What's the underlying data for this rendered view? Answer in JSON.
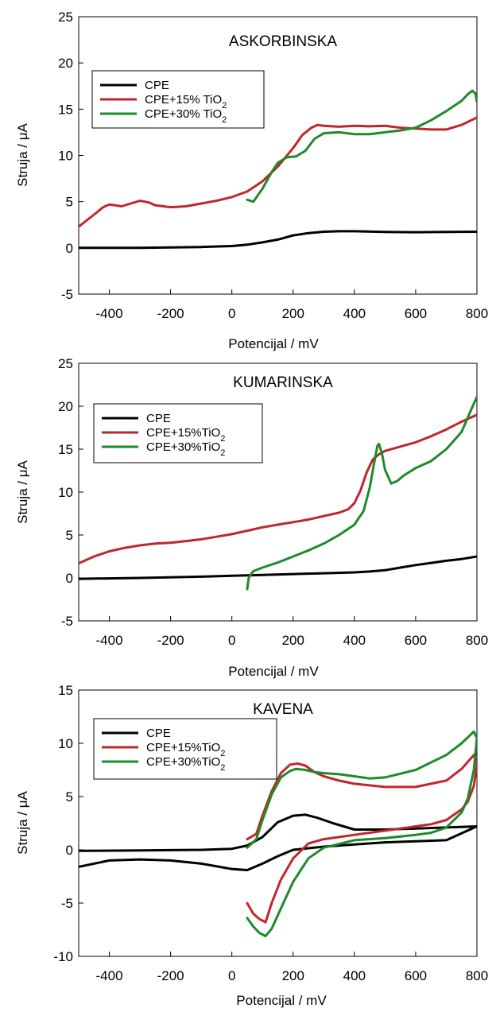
{
  "chart_data": [
    {
      "type": "line",
      "title": "ASKORBINSKA",
      "xlabel": "Potencijal / mV",
      "ylabel": "Struja / μA",
      "xlim": [
        -500,
        800
      ],
      "ylim": [
        -5,
        25
      ],
      "xticks": [
        "-400",
        "-200",
        "0",
        "200",
        "400",
        "600",
        "800"
      ],
      "yticks": [
        "-5",
        "0",
        "5",
        "10",
        "15",
        "20",
        "25"
      ],
      "legend_position": "upper-left",
      "series": [
        {
          "name": "CPE",
          "color": "#000000",
          "x": [
            -500,
            -300,
            -100,
            0,
            50,
            100,
            150,
            200,
            250,
            300,
            350,
            400,
            500,
            600,
            700,
            800
          ],
          "y": [
            0,
            0,
            0.1,
            0.2,
            0.35,
            0.6,
            0.9,
            1.35,
            1.6,
            1.75,
            1.8,
            1.8,
            1.72,
            1.7,
            1.72,
            1.75
          ]
        },
        {
          "name": "CPE+15% TiO₂",
          "color": "#c0272d",
          "x": [
            -500,
            -450,
            -420,
            -400,
            -360,
            -330,
            -300,
            -270,
            -250,
            -200,
            -150,
            -100,
            -50,
            0,
            50,
            100,
            150,
            200,
            230,
            260,
            280,
            300,
            350,
            400,
            450,
            500,
            550,
            600,
            650,
            700,
            750,
            800
          ],
          "y": [
            2.3,
            3.6,
            4.4,
            4.7,
            4.5,
            4.8,
            5.1,
            4.9,
            4.6,
            4.4,
            4.5,
            4.8,
            5.1,
            5.5,
            6.1,
            7.2,
            8.8,
            10.8,
            12.2,
            13.0,
            13.3,
            13.2,
            13.1,
            13.2,
            13.15,
            13.2,
            13.0,
            12.9,
            12.8,
            12.8,
            13.3,
            14.1
          ]
        },
        {
          "name": "CPE+30% TiO₂",
          "color": "#1f8a2a",
          "x": [
            50,
            70,
            100,
            130,
            150,
            180,
            210,
            240,
            270,
            300,
            350,
            400,
            450,
            500,
            550,
            600,
            650,
            700,
            750,
            770,
            785,
            795,
            800
          ],
          "y": [
            5.2,
            5.0,
            6.4,
            8.2,
            9.2,
            9.8,
            9.9,
            10.5,
            11.8,
            12.4,
            12.5,
            12.3,
            12.3,
            12.5,
            12.7,
            13.0,
            13.8,
            14.8,
            15.9,
            16.6,
            17.0,
            16.7,
            15.8
          ]
        }
      ]
    },
    {
      "type": "line",
      "title": "KUMARINSKA",
      "xlabel": "Potencijal / mV",
      "ylabel": "Struja / μA",
      "xlim": [
        -500,
        800
      ],
      "ylim": [
        -5,
        25
      ],
      "xticks": [
        "-400",
        "-200",
        "0",
        "200",
        "400",
        "600",
        "800"
      ],
      "yticks": [
        "-5",
        "0",
        "5",
        "10",
        "15",
        "20",
        "25"
      ],
      "legend_position": "upper-left",
      "series": [
        {
          "name": "CPE",
          "color": "#000000",
          "x": [
            -500,
            -300,
            -100,
            0,
            100,
            200,
            300,
            400,
            450,
            500,
            550,
            600,
            650,
            700,
            750,
            800
          ],
          "y": [
            -0.1,
            0,
            0.15,
            0.25,
            0.35,
            0.45,
            0.55,
            0.65,
            0.75,
            0.9,
            1.2,
            1.5,
            1.75,
            2.0,
            2.2,
            2.5
          ]
        },
        {
          "name": "CPE+15%TiO₂",
          "color": "#c0272d",
          "x": [
            -500,
            -450,
            -400,
            -350,
            -300,
            -250,
            -200,
            -150,
            -100,
            -50,
            0,
            50,
            100,
            150,
            200,
            250,
            300,
            350,
            380,
            400,
            420,
            440,
            460,
            480,
            500,
            550,
            600,
            650,
            700,
            750,
            800
          ],
          "y": [
            1.7,
            2.5,
            3.1,
            3.5,
            3.8,
            4.0,
            4.1,
            4.3,
            4.5,
            4.8,
            5.1,
            5.5,
            5.9,
            6.2,
            6.5,
            6.8,
            7.2,
            7.6,
            8.0,
            8.7,
            10.2,
            12.3,
            13.8,
            14.4,
            14.8,
            15.3,
            15.8,
            16.5,
            17.3,
            18.2,
            19.0
          ]
        },
        {
          "name": "CPE+30%TiO₂",
          "color": "#1f8a2a",
          "x": [
            50,
            55,
            60,
            70,
            100,
            150,
            200,
            250,
            300,
            350,
            400,
            430,
            450,
            465,
            475,
            480,
            490,
            500,
            520,
            540,
            560,
            600,
            650,
            700,
            750,
            780,
            800
          ],
          "y": [
            -1.3,
            0,
            0.3,
            0.8,
            1.2,
            1.8,
            2.5,
            3.2,
            4.0,
            5.0,
            6.2,
            7.8,
            10.5,
            13.5,
            15.4,
            15.6,
            14.5,
            12.6,
            11.0,
            11.3,
            11.9,
            12.8,
            13.6,
            15.0,
            17.0,
            19.5,
            21.1
          ]
        }
      ]
    },
    {
      "type": "line",
      "title": "KAVENA",
      "xlabel": "Potencijal / mV",
      "ylabel": "Struja / μA",
      "xlim": [
        -500,
        800
      ],
      "ylim": [
        -10,
        15
      ],
      "xticks": [
        "-400",
        "-200",
        "0",
        "200",
        "400",
        "600",
        "800"
      ],
      "yticks": [
        "-10",
        "-5",
        "0",
        "5",
        "10",
        "15"
      ],
      "legend_position": "upper-left",
      "series": [
        {
          "name": "CPE",
          "color": "#000000",
          "x": [
            -500,
            -300,
            -100,
            0,
            50,
            100,
            150,
            200,
            240,
            280,
            330,
            400,
            500,
            600,
            700,
            800,
            700,
            600,
            500,
            400,
            300,
            200,
            150,
            100,
            50,
            0,
            -100,
            -200,
            -300,
            -400,
            -500
          ],
          "y": [
            -0.1,
            -0.05,
            0,
            0.1,
            0.4,
            1.2,
            2.6,
            3.2,
            3.3,
            3.0,
            2.5,
            1.9,
            1.9,
            2.0,
            2.1,
            2.2,
            0.9,
            0.8,
            0.7,
            0.5,
            0.3,
            0.0,
            -0.6,
            -1.3,
            -1.9,
            -1.8,
            -1.3,
            -1.0,
            -0.9,
            -1.0,
            -1.6
          ]
        },
        {
          "name": "CPE+15%TiO₂",
          "color": "#c0272d",
          "x": [
            50,
            80,
            100,
            130,
            160,
            190,
            215,
            240,
            270,
            300,
            350,
            400,
            500,
            600,
            700,
            750,
            790,
            800,
            790,
            770,
            750,
            700,
            650,
            600,
            500,
            400,
            300,
            250,
            200,
            160,
            130,
            110,
            90,
            70,
            50
          ],
          "y": [
            1.0,
            1.5,
            3.2,
            5.5,
            7.2,
            8.0,
            8.1,
            7.9,
            7.3,
            6.9,
            6.5,
            6.2,
            5.9,
            5.9,
            6.5,
            7.6,
            8.9,
            8.0,
            6.0,
            4.5,
            3.8,
            2.8,
            2.4,
            2.2,
            1.8,
            1.4,
            1.0,
            0.6,
            -0.8,
            -2.8,
            -5.0,
            -6.8,
            -6.5,
            -6.0,
            -5.0
          ]
        },
        {
          "name": "CPE+30%TiO₂",
          "color": "#1f8a2a",
          "x": [
            50,
            80,
            100,
            130,
            160,
            190,
            210,
            240,
            270,
            300,
            350,
            400,
            450,
            500,
            600,
            700,
            750,
            790,
            800,
            790,
            770,
            750,
            700,
            650,
            600,
            500,
            400,
            300,
            250,
            200,
            160,
            130,
            110,
            90,
            70,
            50
          ],
          "y": [
            0.2,
            1.0,
            2.8,
            5.2,
            6.8,
            7.4,
            7.6,
            7.5,
            7.3,
            7.2,
            7.1,
            6.9,
            6.7,
            6.8,
            7.5,
            8.9,
            10.0,
            11.1,
            10.5,
            7.5,
            4.8,
            3.5,
            2.1,
            1.6,
            1.4,
            1.1,
            0.9,
            0.2,
            -0.8,
            -3.0,
            -5.5,
            -7.4,
            -8.1,
            -7.8,
            -7.2,
            -6.4
          ]
        }
      ]
    }
  ]
}
